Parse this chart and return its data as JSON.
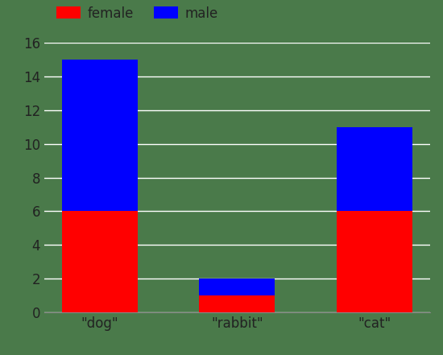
{
  "categories": [
    "\"dog\"",
    "\"rabbit\"",
    "\"cat\""
  ],
  "female": [
    6,
    1,
    6
  ],
  "male": [
    9,
    1,
    5
  ],
  "female_color": "#ff0000",
  "male_color": "#0000ff",
  "legend_labels": [
    "female",
    "male"
  ],
  "ylim": [
    0,
    16
  ],
  "yticks": [
    0,
    2,
    4,
    6,
    8,
    10,
    12,
    14,
    16
  ],
  "background_color": "#4a7a4a",
  "grid_color": "#aaaaaa",
  "bar_width": 0.55,
  "tick_color": "#222222",
  "label_fontsize": 13,
  "tick_fontsize": 12
}
